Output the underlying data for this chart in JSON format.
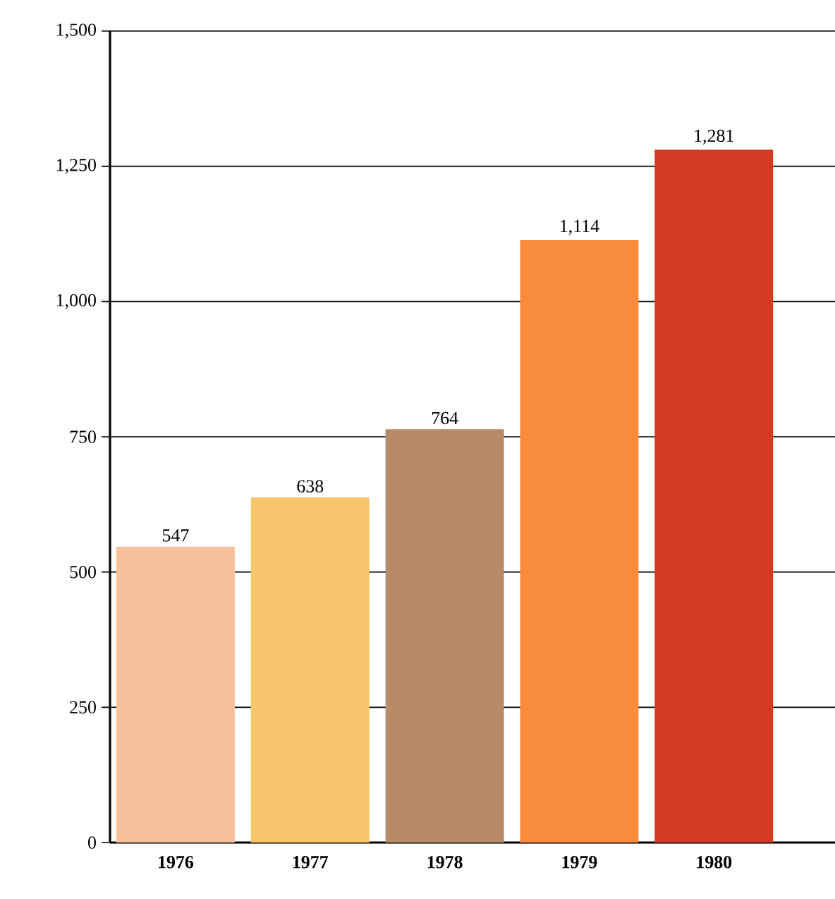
{
  "chart_data": {
    "type": "bar",
    "categories": [
      "1976",
      "1977",
      "1978",
      "1979",
      "1980"
    ],
    "values": [
      547,
      638,
      764,
      1114,
      1281
    ],
    "value_labels": [
      "547",
      "638",
      "764",
      "1,114",
      "1,281"
    ],
    "colors": [
      "#f5c29c",
      "#f8c46c",
      "#b98a66",
      "#f98b3c",
      "#d23b22"
    ],
    "ylim": [
      0,
      1500
    ],
    "yticks": [
      0,
      250,
      500,
      750,
      {
        "value": 1000,
        "label": "1,000"
      },
      {
        "value": 1250,
        "label": "1,250"
      },
      {
        "value": 1500,
        "label": "1,500"
      }
    ],
    "grid": "y"
  }
}
